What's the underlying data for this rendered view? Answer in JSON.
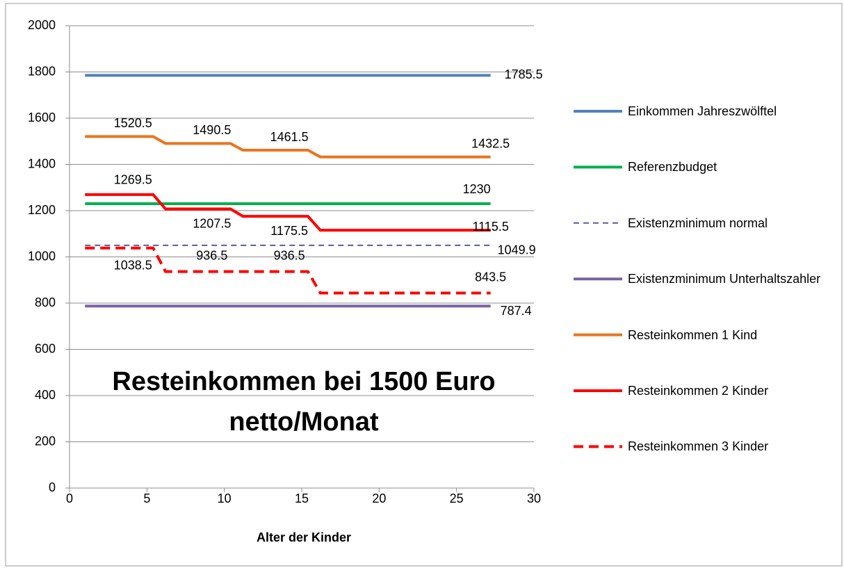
{
  "chart_data": {
    "type": "line",
    "title": "Resteinkommen bei 1500 Euro netto/Monat",
    "x_label": "Alter der Kinder",
    "xlim": [
      0,
      30
    ],
    "xticks": [
      0,
      5,
      10,
      15,
      20,
      25,
      30
    ],
    "ylim": [
      0,
      2000
    ],
    "yticks": [
      0,
      200,
      400,
      600,
      800,
      1000,
      1200,
      1400,
      1600,
      1800,
      2000
    ],
    "grid": true,
    "legend": "right",
    "series": [
      {
        "name": "Einkommen Jahreszwölftel",
        "color": "#4f81bd",
        "line_style": "solid",
        "x": [
          1,
          27.2
        ],
        "values": [
          1785.5,
          1785.5
        ]
      },
      {
        "name": "Referenzbudget",
        "color": "#00b050",
        "line_style": "solid",
        "x": [
          1,
          27.2
        ],
        "values": [
          1230,
          1230
        ]
      },
      {
        "name": "Existenzminimum normal",
        "color": "#5a5a9c",
        "line_style": "dashed",
        "x": [
          1,
          27.2
        ],
        "values": [
          1049.9,
          1049.9
        ]
      },
      {
        "name": "Existenzminimum Unterhaltszahler",
        "color": "#7b62a3",
        "line_style": "solid",
        "x": [
          1,
          27.2
        ],
        "values": [
          787.4,
          787.4
        ]
      },
      {
        "name": "Resteinkommen 1 Kind",
        "color": "#e8761e",
        "line_style": "solid",
        "x": [
          1,
          5.4,
          6.2,
          10.4,
          11.2,
          15.4,
          16.2,
          27.2
        ],
        "values": [
          1520.5,
          1520.5,
          1490.5,
          1490.5,
          1461.5,
          1461.5,
          1432.5,
          1432.5
        ]
      },
      {
        "name": "Resteinkommen 2 Kinder",
        "color": "#ff0000",
        "line_style": "solid",
        "x": [
          1,
          5.4,
          6.2,
          10.4,
          11.2,
          15.4,
          16.2,
          27.2
        ],
        "values": [
          1269.5,
          1269.5,
          1207.5,
          1207.5,
          1175.5,
          1175.5,
          1115.5,
          1115.5
        ]
      },
      {
        "name": "Resteinkommen 3 Kinder",
        "color": "#ff0000",
        "line_style": "dashed",
        "x": [
          1,
          5.4,
          6.2,
          10.4,
          11.2,
          15.4,
          16.2,
          27.2
        ],
        "values": [
          1038.5,
          1038.5,
          936.5,
          936.5,
          936.5,
          936.5,
          843.5,
          843.5
        ]
      }
    ]
  }
}
